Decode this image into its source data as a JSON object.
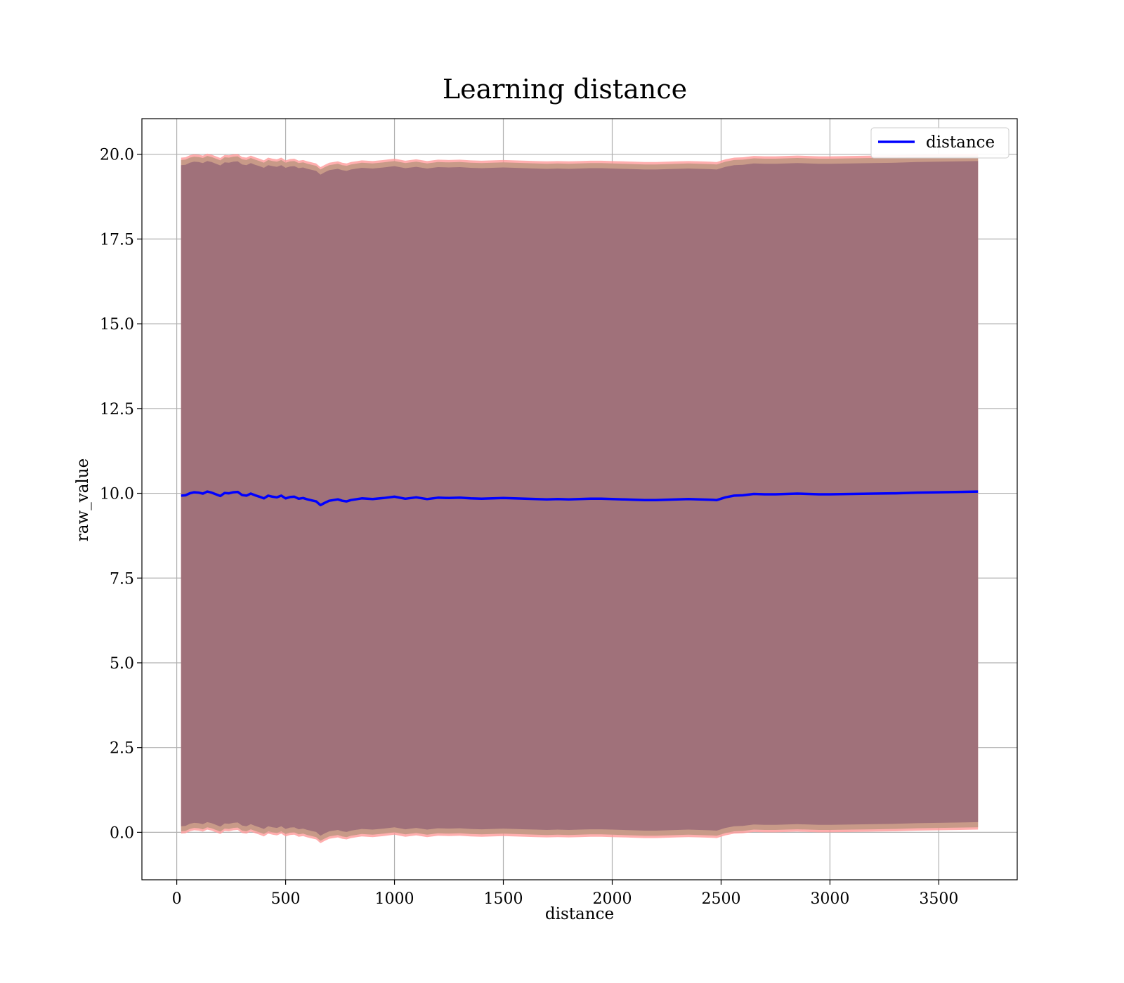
{
  "chart_data": {
    "type": "line",
    "title": "Learning distance",
    "xlabel": "distance",
    "ylabel": "raw_value",
    "xlim": [
      -160,
      3860
    ],
    "ylim": [
      -1.4,
      21.05
    ],
    "xticks": [
      0,
      500,
      1000,
      1500,
      2000,
      2500,
      3000,
      3500
    ],
    "yticks": [
      0.0,
      2.5,
      5.0,
      7.5,
      10.0,
      12.5,
      15.0,
      17.5,
      20.0
    ],
    "xtick_labels": [
      "0",
      "500",
      "1000",
      "1500",
      "2000",
      "2500",
      "3000",
      "3500"
    ],
    "ytick_labels": [
      "0.0",
      "2.5",
      "5.0",
      "7.5",
      "10.0",
      "12.5",
      "15.0",
      "17.5",
      "20.0"
    ],
    "grid": true,
    "legend": {
      "position": "top-right",
      "entries": [
        "distance"
      ]
    },
    "colors": {
      "line": "#0000ff",
      "band_outer": "#ff9a9a",
      "band_inner": "#a0717a",
      "band_mid": "#c89a88"
    },
    "series": [
      {
        "name": "distance",
        "x": [
          20,
          40,
          60,
          80,
          100,
          120,
          140,
          160,
          180,
          200,
          220,
          240,
          260,
          280,
          300,
          320,
          340,
          360,
          380,
          400,
          420,
          440,
          460,
          480,
          500,
          520,
          540,
          560,
          580,
          600,
          620,
          640,
          660,
          680,
          700,
          720,
          740,
          760,
          780,
          800,
          850,
          900,
          950,
          1000,
          1050,
          1100,
          1150,
          1200,
          1250,
          1300,
          1350,
          1400,
          1450,
          1500,
          1550,
          1600,
          1650,
          1700,
          1750,
          1800,
          1850,
          1900,
          1950,
          2000,
          2050,
          2100,
          2150,
          2200,
          2250,
          2300,
          2350,
          2400,
          2450,
          2480,
          2520,
          2560,
          2600,
          2650,
          2700,
          2750,
          2800,
          2850,
          2900,
          2950,
          3000,
          3100,
          3200,
          3300,
          3400,
          3500,
          3600,
          3680
        ],
        "y": [
          9.93,
          9.94,
          10.0,
          10.03,
          10.02,
          9.99,
          10.05,
          10.02,
          9.97,
          9.92,
          10.01,
          10.0,
          10.03,
          10.04,
          9.95,
          9.93,
          9.99,
          9.94,
          9.9,
          9.85,
          9.93,
          9.9,
          9.88,
          9.93,
          9.85,
          9.89,
          9.9,
          9.84,
          9.86,
          9.82,
          9.79,
          9.76,
          9.65,
          9.72,
          9.78,
          9.8,
          9.82,
          9.78,
          9.76,
          9.8,
          9.85,
          9.83,
          9.86,
          9.9,
          9.84,
          9.88,
          9.83,
          9.87,
          9.86,
          9.87,
          9.85,
          9.84,
          9.85,
          9.86,
          9.85,
          9.84,
          9.83,
          9.82,
          9.83,
          9.82,
          9.83,
          9.84,
          9.84,
          9.83,
          9.82,
          9.81,
          9.8,
          9.8,
          9.81,
          9.82,
          9.83,
          9.82,
          9.81,
          9.8,
          9.88,
          9.93,
          9.94,
          9.98,
          9.97,
          9.97,
          9.98,
          9.99,
          9.98,
          9.97,
          9.97,
          9.98,
          9.99,
          10.0,
          10.02,
          10.03,
          10.04,
          10.05
        ]
      }
    ],
    "bands": [
      {
        "name": "band_outer",
        "y_offset": 9.97
      },
      {
        "name": "band_inner",
        "y_offset": 9.75
      }
    ]
  }
}
